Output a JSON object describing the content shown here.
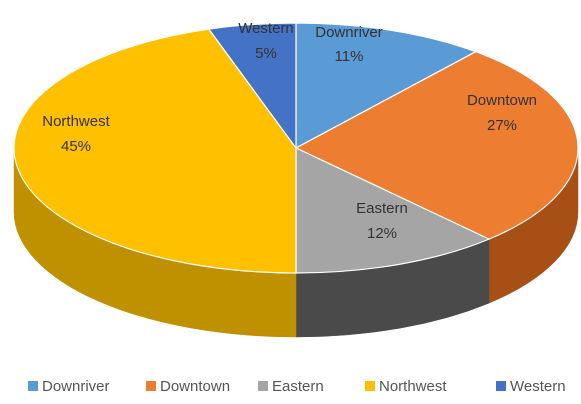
{
  "chart_data": {
    "type": "pie",
    "style": "3d",
    "title": "",
    "slices": [
      {
        "label": "Downriver",
        "value": 11,
        "value_label": "11%",
        "color": "#5b9bd5",
        "side_color": "#3d6f9c"
      },
      {
        "label": "Downtown",
        "value": 27,
        "value_label": "27%",
        "color": "#ed7d31",
        "side_color": "#a84f16"
      },
      {
        "label": "Eastern",
        "value": 12,
        "value_label": "12%",
        "color": "#a5a5a5",
        "side_color": "#4a4a4a"
      },
      {
        "label": "Northwest",
        "value": 45,
        "value_label": "45%",
        "color": "#ffc000",
        "side_color": "#bf9000"
      },
      {
        "label": "Western",
        "value": 5,
        "value_label": "5%",
        "color": "#4472c4",
        "side_color": "#2c4f8c"
      }
    ],
    "legend": {
      "placement": "bottom",
      "items": [
        "Downriver",
        "Downtown",
        "Eastern",
        "Northwest",
        "Western"
      ]
    }
  }
}
